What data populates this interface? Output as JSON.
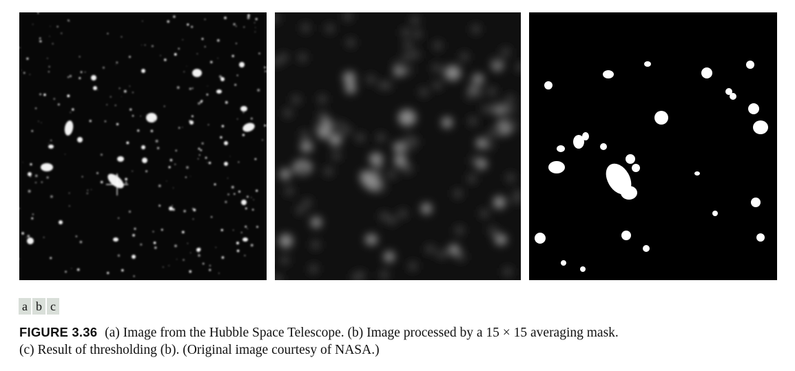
{
  "figure": {
    "panels": [
      {
        "id": "a",
        "description": "Image from the Hubble Space Telescope"
      },
      {
        "id": "b",
        "description": "Image processed by a 15 × 15 averaging mask"
      },
      {
        "id": "c",
        "description": "Result of thresholding (b)"
      }
    ],
    "subfigure_labels": [
      "a",
      "b",
      "c"
    ],
    "caption": {
      "label": "FIGURE 3.36",
      "line1": "(a) Image from the Hubble Space Telescope. (b) Image processed by a 15 × 15 averaging mask.",
      "line2": "(c) Result of thresholding (b). (Original image courtesy of NASA.)"
    }
  }
}
